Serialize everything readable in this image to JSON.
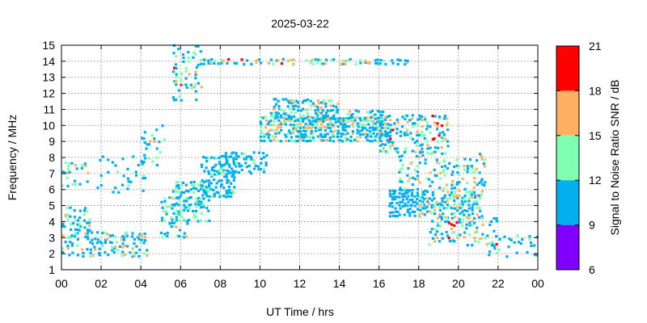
{
  "chart_data": {
    "type": "heatmap",
    "title": "2025-03-22",
    "xlabel": "UT Time / hrs",
    "ylabel": "Frequency / MHz",
    "xlim": [
      0,
      24
    ],
    "ylim": [
      1,
      15
    ],
    "x_tick_labels": [
      "00",
      "02",
      "04",
      "06",
      "08",
      "10",
      "12",
      "14",
      "16",
      "18",
      "20",
      "22",
      "00"
    ],
    "y_tick_labels": [
      "1",
      "2",
      "3",
      "4",
      "5",
      "6",
      "7",
      "8",
      "9",
      "10",
      "11",
      "12",
      "13",
      "14",
      "15"
    ],
    "grid": true,
    "colorbar": {
      "label": "Signal to Noise Ratio SNR / dB",
      "range": [
        6,
        21
      ],
      "tick_labels": [
        "6",
        "9",
        "12",
        "15",
        "18",
        "21"
      ],
      "bands": [
        {
          "min": 6,
          "max": 9,
          "color": "#8000ff"
        },
        {
          "min": 9,
          "max": 12,
          "color": "#00b0ee"
        },
        {
          "min": 12,
          "max": 15,
          "color": "#80ffb0"
        },
        {
          "min": 15,
          "max": 18,
          "color": "#ffb060"
        },
        {
          "min": 18,
          "max": 21,
          "color": "#ff0000"
        }
      ]
    },
    "clusters": [
      {
        "t": [
          0.0,
          1.5
        ],
        "f": [
          3.0,
          5.0
        ],
        "snr": [
          9,
          16
        ],
        "density": 0.35
      },
      {
        "t": [
          0.0,
          1.5
        ],
        "f": [
          6.2,
          7.8
        ],
        "snr": [
          9,
          18
        ],
        "density": 0.25
      },
      {
        "t": [
          0.0,
          4.3
        ],
        "f": [
          1.8,
          3.3
        ],
        "snr": [
          9,
          18
        ],
        "density": 0.35
      },
      {
        "t": [
          1.8,
          4.3
        ],
        "f": [
          5.8,
          8.2
        ],
        "snr": [
          9,
          13
        ],
        "density": 0.12
      },
      {
        "t": [
          4.0,
          5.2
        ],
        "f": [
          7.5,
          10.0
        ],
        "snr": [
          9,
          19
        ],
        "density": 0.2
      },
      {
        "t": [
          5.0,
          6.3
        ],
        "f": [
          3.0,
          5.5
        ],
        "snr": [
          9,
          16
        ],
        "density": 0.4
      },
      {
        "t": [
          5.6,
          7.0
        ],
        "f": [
          11.5,
          15.0
        ],
        "snr": [
          9,
          19
        ],
        "density": 0.22
      },
      {
        "t": [
          5.6,
          7.4
        ],
        "f": [
          4.0,
          6.5
        ],
        "snr": [
          9,
          15
        ],
        "density": 0.55
      },
      {
        "t": [
          7.0,
          8.7
        ],
        "f": [
          5.5,
          8.0
        ],
        "snr": [
          9,
          13
        ],
        "density": 0.55
      },
      {
        "t": [
          8.0,
          10.3
        ],
        "f": [
          7.0,
          8.3
        ],
        "snr": [
          9,
          13
        ],
        "density": 0.45
      },
      {
        "t": [
          7.0,
          17.5
        ],
        "f": [
          13.8,
          14.2
        ],
        "snr": [
          9,
          19
        ],
        "density": 0.45
      },
      {
        "t": [
          10.0,
          16.5
        ],
        "f": [
          9.0,
          10.5
        ],
        "snr": [
          9,
          18
        ],
        "density": 0.75
      },
      {
        "t": [
          10.5,
          14.0
        ],
        "f": [
          10.3,
          11.6
        ],
        "snr": [
          9,
          18
        ],
        "density": 0.5
      },
      {
        "t": [
          14.0,
          16.2
        ],
        "f": [
          9.8,
          10.9
        ],
        "snr": [
          9,
          16
        ],
        "density": 0.4
      },
      {
        "t": [
          16.0,
          19.5
        ],
        "f": [
          8.3,
          10.5
        ],
        "snr": [
          9,
          19
        ],
        "density": 0.45
      },
      {
        "t": [
          16.5,
          18.0
        ],
        "f": [
          4.3,
          6.0
        ],
        "snr": [
          9,
          12
        ],
        "density": 0.7
      },
      {
        "t": [
          18.0,
          21.2
        ],
        "f": [
          4.2,
          6.0
        ],
        "snr": [
          9,
          18
        ],
        "density": 0.6
      },
      {
        "t": [
          17.0,
          21.3
        ],
        "f": [
          6.0,
          8.3
        ],
        "snr": [
          9,
          18
        ],
        "density": 0.28
      },
      {
        "t": [
          18.5,
          22.0
        ],
        "f": [
          2.5,
          4.2
        ],
        "snr": [
          9,
          19
        ],
        "density": 0.3
      },
      {
        "t": [
          21.5,
          24.0
        ],
        "f": [
          1.8,
          3.2
        ],
        "snr": [
          9,
          13
        ],
        "density": 0.2
      }
    ]
  }
}
